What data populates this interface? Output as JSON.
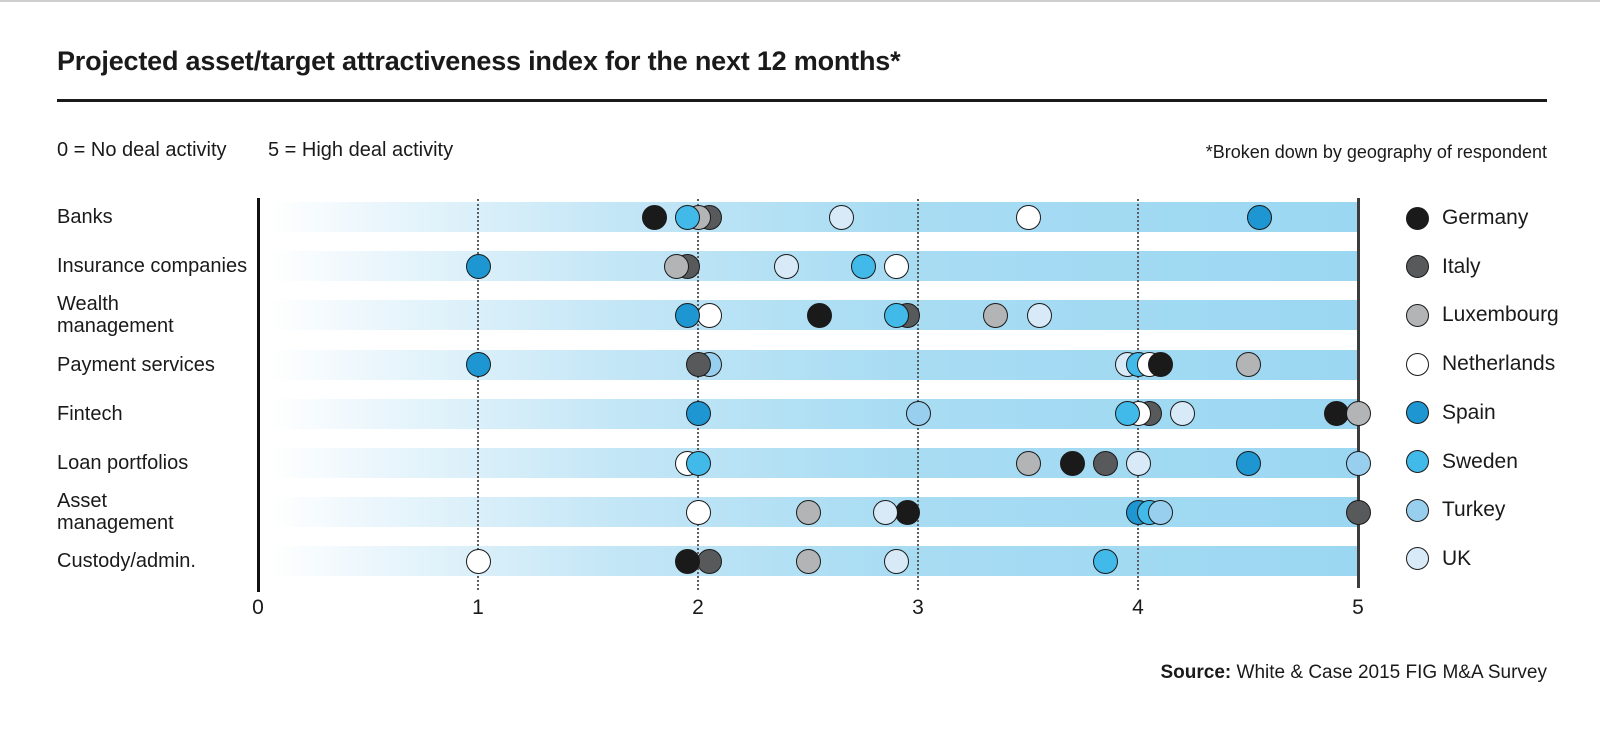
{
  "title": "Projected asset/target attractiveness index for the next 12 months*",
  "scale_note_low": "0 = No deal activity",
  "scale_note_high": "5 = High deal activity",
  "footnote": "*Broken down by geography of respondent",
  "source": {
    "label": "Source:",
    "text": "White & Case 2015 FIG M&A Survey"
  },
  "colors": {
    "Germany": "#1a1a1a",
    "Italy": "#58595b",
    "Luxembourg": "#b2b4b6",
    "Netherlands": "#ffffff",
    "Spain": "#1e96d2",
    "Sweden": "#41b9e9",
    "Turkey": "#99cfee",
    "UK": "#d8eaf8",
    "band_start": "#ffffff",
    "band_end": "#9bd7f2",
    "axis": "#1a1a1a"
  },
  "legend": [
    {
      "country": "Germany"
    },
    {
      "country": "Italy"
    },
    {
      "country": "Luxembourg"
    },
    {
      "country": "Netherlands"
    },
    {
      "country": "Spain"
    },
    {
      "country": "Sweden"
    },
    {
      "country": "Turkey"
    },
    {
      "country": "UK"
    }
  ],
  "chart_data": {
    "type": "scatter",
    "title": "Projected asset/target attractiveness index for the next 12 months*",
    "xlabel": "",
    "ylabel": "",
    "xlim": [
      0,
      5
    ],
    "x_ticks": [
      0,
      1,
      2,
      3,
      4,
      5
    ],
    "grid": "dotted vertical lines at 1,2,3,4; solid axis at 0; solid end line at 5",
    "legend_position": "right",
    "rows": [
      {
        "label": "Banks",
        "points": [
          {
            "country": "Germany",
            "value": 1.8
          },
          {
            "country": "Italy",
            "value": 2.05
          },
          {
            "country": "Luxembourg",
            "value": 2.0
          },
          {
            "country": "Sweden",
            "value": 1.95
          },
          {
            "country": "UK",
            "value": 2.65
          },
          {
            "country": "Netherlands",
            "value": 3.5
          },
          {
            "country": "Spain",
            "value": 4.55
          }
        ]
      },
      {
        "label": "Insurance companies",
        "points": [
          {
            "country": "Spain",
            "value": 1.0
          },
          {
            "country": "Italy",
            "value": 1.95
          },
          {
            "country": "Luxembourg",
            "value": 1.9
          },
          {
            "country": "UK",
            "value": 2.4
          },
          {
            "country": "Sweden",
            "value": 2.75
          },
          {
            "country": "Netherlands",
            "value": 2.9
          }
        ]
      },
      {
        "label": "Wealth\nmanagement",
        "points": [
          {
            "country": "Netherlands",
            "value": 2.05
          },
          {
            "country": "Spain",
            "value": 1.95
          },
          {
            "country": "Germany",
            "value": 2.55
          },
          {
            "country": "Italy",
            "value": 2.95
          },
          {
            "country": "Sweden",
            "value": 2.9
          },
          {
            "country": "Luxembourg",
            "value": 3.35
          },
          {
            "country": "UK",
            "value": 3.55
          }
        ]
      },
      {
        "label": "Payment services",
        "points": [
          {
            "country": "Spain",
            "value": 1.0
          },
          {
            "country": "Turkey",
            "value": 2.05
          },
          {
            "country": "Italy",
            "value": 2.0
          },
          {
            "country": "UK",
            "value": 3.95
          },
          {
            "country": "Sweden",
            "value": 4.0
          },
          {
            "country": "Netherlands",
            "value": 4.05
          },
          {
            "country": "Germany",
            "value": 4.1
          },
          {
            "country": "Luxembourg",
            "value": 4.5
          }
        ]
      },
      {
        "label": "Fintech",
        "points": [
          {
            "country": "Spain",
            "value": 2.0
          },
          {
            "country": "Turkey",
            "value": 3.0
          },
          {
            "country": "Italy",
            "value": 4.05
          },
          {
            "country": "Netherlands",
            "value": 4.0
          },
          {
            "country": "Sweden",
            "value": 3.95
          },
          {
            "country": "UK",
            "value": 4.2
          },
          {
            "country": "Germany",
            "value": 4.9
          },
          {
            "country": "Luxembourg",
            "value": 5.0
          }
        ]
      },
      {
        "label": "Loan portfolios",
        "points": [
          {
            "country": "Netherlands",
            "value": 1.95
          },
          {
            "country": "Sweden",
            "value": 2.0
          },
          {
            "country": "Luxembourg",
            "value": 3.5
          },
          {
            "country": "Germany",
            "value": 3.7
          },
          {
            "country": "Italy",
            "value": 3.85
          },
          {
            "country": "UK",
            "value": 4.0
          },
          {
            "country": "Spain",
            "value": 4.5
          },
          {
            "country": "Turkey",
            "value": 5.0
          }
        ]
      },
      {
        "label": "Asset\nmanagement",
        "points": [
          {
            "country": "Germany",
            "value": 2.95
          },
          {
            "country": "UK",
            "value": 2.85
          },
          {
            "country": "Netherlands",
            "value": 2.0
          },
          {
            "country": "Luxembourg",
            "value": 2.5
          },
          {
            "country": "Spain",
            "value": 4.0
          },
          {
            "country": "Sweden",
            "value": 4.05
          },
          {
            "country": "Turkey",
            "value": 4.1
          },
          {
            "country": "Italy",
            "value": 5.0
          }
        ]
      },
      {
        "label": "Custody/admin.",
        "points": [
          {
            "country": "Italy",
            "value": 2.05
          },
          {
            "country": "Germany",
            "value": 1.95
          },
          {
            "country": "Netherlands",
            "value": 1.0
          },
          {
            "country": "Luxembourg",
            "value": 2.5
          },
          {
            "country": "UK",
            "value": 2.9
          },
          {
            "country": "Sweden",
            "value": 3.85
          }
        ]
      }
    ]
  }
}
